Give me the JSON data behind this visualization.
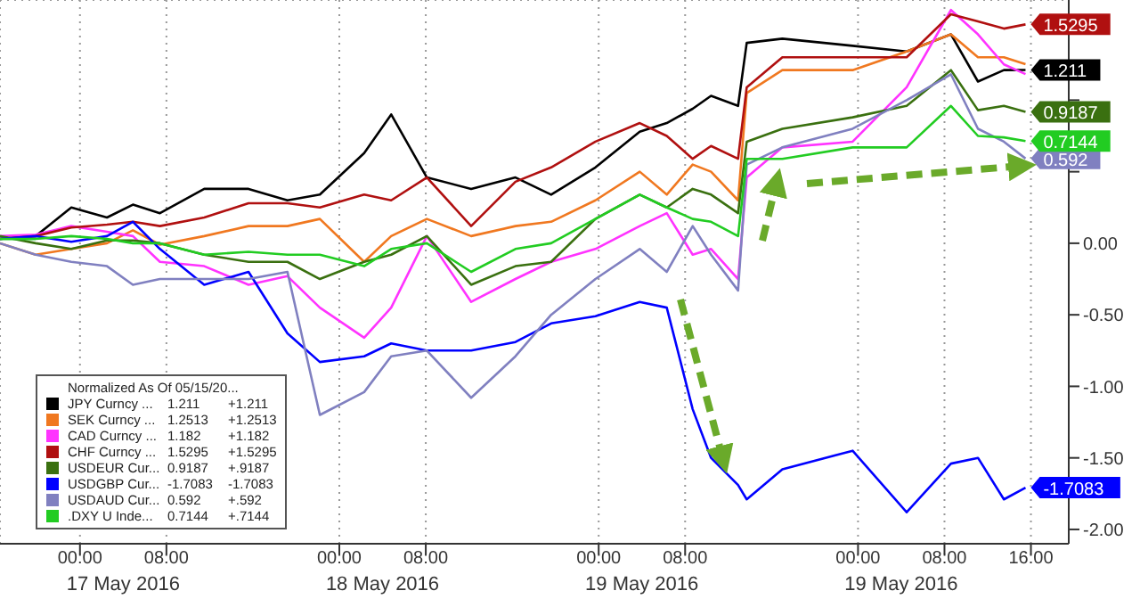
{
  "chart_data": {
    "type": "line",
    "legend_title": "Normalized As Of 05/15/20...",
    "legend": "bottom left",
    "grid": true,
    "x": [
      "2016-05-16T16:36",
      "2016-05-16T19:54",
      "2016-05-16T23:12",
      "2016-05-17T02:30",
      "2016-05-17T04:54",
      "2016-05-17T07:24",
      "2016-05-17T11:30",
      "2016-05-17T15:36",
      "2016-05-17T19:12",
      "2016-05-17T22:12",
      "2016-05-18T02:18",
      "2016-05-18T04:48",
      "2016-05-18T08:06",
      "2016-05-18T12:12",
      "2016-05-18T16:18",
      "2016-05-18T19:36",
      "2016-05-18T23:42",
      "2016-05-19T03:48",
      "2016-05-19T06:18",
      "2016-05-19T08:42",
      "2016-05-19T10:24",
      "2016-05-19T12:54",
      "2016-05-19T13:42",
      "2016-05-19T17:00",
      "2016-05-19T23:30",
      "2016-05-20T04:30",
      "2016-05-20T08:36",
      "2016-05-20T11:06",
      "2016-05-20T13:30",
      "2016-05-20T15:30"
    ],
    "xlim": [
      "2016-05-16T16:36",
      "2016-05-20T19:30"
    ],
    "xticks": [
      {
        "value": "2016-05-17T00:00",
        "label": "00:00"
      },
      {
        "value": "2016-05-17T08:00",
        "label": "08:00"
      },
      {
        "value": "2016-05-18T00:00",
        "label": "00:00"
      },
      {
        "value": "2016-05-18T08:00",
        "label": "08:00"
      },
      {
        "value": "2016-05-19T00:00",
        "label": "00:00"
      },
      {
        "value": "2016-05-19T08:00",
        "label": "08:00"
      },
      {
        "value": "2016-05-20T00:00",
        "label": "00:00"
      },
      {
        "value": "2016-05-20T08:00",
        "label": "08:00"
      },
      {
        "value": "2016-05-20T16:00",
        "label": "16:00"
      }
    ],
    "ylim": [
      -2.1,
      1.7
    ],
    "yticks": [
      {
        "value": 1.5,
        "label": null
      },
      {
        "value": 1,
        "label": null
      },
      {
        "value": 0.5,
        "label": null
      },
      {
        "value": 0,
        "label": "0.00"
      },
      {
        "value": -0.5,
        "label": "-0.50"
      },
      {
        "value": -1,
        "label": "-1.00"
      },
      {
        "value": -1.5,
        "label": "-1.50"
      },
      {
        "value": -2,
        "label": "-2.00"
      }
    ],
    "annotations": [
      "17 May 2016",
      "18 May 2016",
      "19 May 2016",
      "19 May 2016",
      "1.211",
      "+1.211",
      "1.2513",
      "+1.2513",
      "1.182",
      "+1.182",
      "1.5295",
      "+1.5295",
      "0.9187",
      "+.9187",
      "-1.7083",
      "-1.7083",
      "0.592",
      "+.592",
      "0.7144",
      "+.7144"
    ],
    "series": [
      {
        "name": "JPY Curncy ...",
        "color": "#000000",
        "values": [
          0.03,
          0.05,
          0.25,
          0.18,
          0.27,
          0.21,
          0.38,
          0.38,
          0.3,
          0.34,
          0.63,
          0.9,
          0.46,
          0.38,
          0.46,
          0.34,
          0.53,
          0.78,
          0.84,
          0.94,
          1.03,
          0.96,
          1.4,
          1.43,
          1.38,
          1.34,
          1.46,
          1.13,
          1.21,
          1.211
        ],
        "value_labels": [
          null,
          null,
          null,
          null,
          null,
          null,
          null,
          null,
          null,
          null,
          null,
          null,
          null,
          null,
          null,
          null,
          null,
          null,
          null,
          null,
          null,
          null,
          null,
          null,
          null,
          null,
          null,
          null,
          null,
          "1.211"
        ]
      },
      {
        "name": "SEK Curncy ...",
        "color": "#f07820",
        "values": [
          0,
          -0.08,
          -0.04,
          0,
          0.09,
          -0.01,
          0.05,
          0.12,
          0.12,
          0.17,
          -0.13,
          0.05,
          0.17,
          0.05,
          0.12,
          0.15,
          0.3,
          0.5,
          0.34,
          0.55,
          0.5,
          0.3,
          1.05,
          1.21,
          1.21,
          1.34,
          1.46,
          1.3,
          1.3,
          1.2513
        ]
      },
      {
        "name": "CAD Curncy ...",
        "color": "#ff33ff",
        "values": [
          0.05,
          0.06,
          0.12,
          0.08,
          0.05,
          -0.13,
          -0.16,
          -0.29,
          -0.23,
          -0.45,
          -0.66,
          -0.45,
          0.05,
          -0.41,
          -0.25,
          -0.13,
          -0.04,
          0.12,
          0.21,
          -0.08,
          -0.04,
          -0.25,
          0.46,
          0.67,
          0.71,
          1.09,
          1.63,
          1.46,
          1.25,
          1.182
        ]
      },
      {
        "name": "CHF Curncy ...",
        "color": "#b01010",
        "values": [
          0.03,
          0.05,
          0.11,
          0.13,
          0.15,
          0.12,
          0.18,
          0.28,
          0.28,
          0.25,
          0.34,
          0.3,
          0.46,
          0.12,
          0.43,
          0.53,
          0.71,
          0.84,
          0.75,
          0.59,
          0.68,
          0.59,
          1.09,
          1.3,
          1.3,
          1.3,
          1.6,
          1.55,
          1.5,
          1.5295
        ],
        "value_labels": [
          null,
          null,
          null,
          null,
          null,
          null,
          null,
          null,
          null,
          null,
          null,
          null,
          null,
          null,
          null,
          null,
          null,
          null,
          null,
          null,
          null,
          null,
          null,
          null,
          null,
          null,
          null,
          null,
          null,
          "1.5295"
        ]
      },
      {
        "name": "USDEUR Cur...",
        "color": "#3a7010",
        "values": [
          0.05,
          0,
          -0.04,
          0.02,
          0.02,
          0,
          -0.08,
          -0.13,
          -0.13,
          -0.25,
          -0.13,
          -0.08,
          0.05,
          -0.29,
          -0.16,
          -0.13,
          0.17,
          0.34,
          0.25,
          0.38,
          0.34,
          0.21,
          0.71,
          0.8,
          0.88,
          0.96,
          1.21,
          0.93,
          0.96,
          0.9187
        ],
        "value_labels": [
          null,
          null,
          null,
          null,
          null,
          null,
          null,
          null,
          null,
          null,
          null,
          null,
          null,
          null,
          null,
          null,
          null,
          null,
          null,
          null,
          null,
          null,
          null,
          null,
          null,
          null,
          null,
          null,
          null,
          "0.9187"
        ]
      },
      {
        "name": "USDGBP Cur...",
        "color": "#0000ff",
        "values": [
          0.03,
          0.05,
          0.01,
          0.05,
          0.15,
          -0.04,
          -0.29,
          -0.2,
          -0.63,
          -0.83,
          -0.79,
          -0.7,
          -0.75,
          -0.75,
          -0.69,
          -0.56,
          -0.51,
          -0.41,
          -0.45,
          -1.16,
          -1.5,
          -1.69,
          -1.79,
          -1.58,
          -1.45,
          -1.88,
          -1.54,
          -1.5,
          -1.79,
          -1.7083
        ],
        "value_labels": [
          null,
          null,
          null,
          null,
          null,
          null,
          null,
          null,
          null,
          null,
          null,
          null,
          null,
          null,
          null,
          null,
          null,
          null,
          null,
          null,
          null,
          null,
          null,
          null,
          null,
          null,
          null,
          null,
          null,
          "-1.7083"
        ]
      },
      {
        "name": "USDAUD Cur...",
        "color": "#8080c0",
        "values": [
          0,
          -0.08,
          -0.13,
          -0.16,
          -0.29,
          -0.25,
          -0.25,
          -0.25,
          -0.2,
          -1.2,
          -1.04,
          -0.79,
          -0.75,
          -1.08,
          -0.79,
          -0.5,
          -0.25,
          -0.04,
          -0.2,
          0.12,
          -0.08,
          -0.33,
          0.55,
          0.67,
          0.8,
          1.0,
          1.18,
          0.8,
          0.71,
          0.592
        ],
        "value_labels": [
          null,
          null,
          null,
          null,
          null,
          null,
          null,
          null,
          null,
          null,
          null,
          null,
          null,
          null,
          null,
          null,
          null,
          null,
          null,
          null,
          null,
          null,
          null,
          null,
          null,
          null,
          null,
          null,
          null,
          "0.592"
        ]
      },
      {
        "name": ".DXY U Inde...",
        "color": "#22cc22",
        "values": [
          0.03,
          0.03,
          0.05,
          0.03,
          0,
          0,
          -0.08,
          -0.06,
          -0.08,
          -0.08,
          -0.16,
          -0.04,
          0,
          -0.2,
          -0.04,
          0,
          0.17,
          0.34,
          0.25,
          0.17,
          0.15,
          0.05,
          0.59,
          0.59,
          0.67,
          0.67,
          0.96,
          0.75,
          0.74,
          0.7144
        ],
        "value_labels": [
          null,
          null,
          null,
          null,
          null,
          null,
          null,
          null,
          null,
          null,
          null,
          null,
          null,
          null,
          null,
          null,
          null,
          null,
          null,
          null,
          null,
          null,
          null,
          null,
          null,
          null,
          null,
          null,
          null,
          "0.7144"
        ]
      }
    ]
  }
}
